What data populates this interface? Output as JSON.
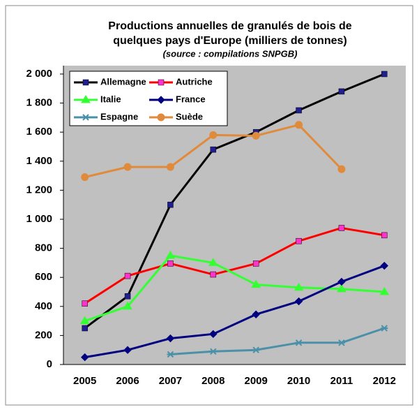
{
  "chart_data": {
    "type": "line",
    "title": [
      "Productions annuelles de granulés de bois de",
      "quelques pays d'Europe (milliers de tonnes)"
    ],
    "subtitle": "(source :  compilations SNPGB)",
    "categories": [
      "2005",
      "2006",
      "2007",
      "2008",
      "2009",
      "2010",
      "2011",
      "2012"
    ],
    "series": [
      {
        "name": "Allemagne",
        "color": "#000000",
        "marker": "square",
        "marker_color": "#1f1f8f",
        "values": [
          250,
          470,
          1100,
          1480,
          1600,
          1750,
          1880,
          2000
        ]
      },
      {
        "name": "Autriche",
        "color": "#ff0000",
        "marker": "square",
        "marker_color": "#ff33cc",
        "values": [
          420,
          610,
          695,
          620,
          695,
          850,
          940,
          890
        ]
      },
      {
        "name": "Italie",
        "color": "#33ff33",
        "marker": "triangle",
        "marker_color": "#33ff33",
        "values": [
          300,
          400,
          750,
          700,
          550,
          530,
          520,
          500
        ]
      },
      {
        "name": "France",
        "color": "#000080",
        "marker": "diamond",
        "marker_color": "#000080",
        "values": [
          50,
          100,
          180,
          210,
          345,
          435,
          570,
          680
        ]
      },
      {
        "name": "Espagne",
        "color": "#4a90a8",
        "marker": "star",
        "marker_color": "#4a90a8",
        "values": [
          null,
          null,
          70,
          90,
          100,
          150,
          150,
          250
        ]
      },
      {
        "name": "Suède",
        "color": "#e08a3c",
        "marker": "circle",
        "marker_color": "#e08a3c",
        "values": [
          1290,
          1360,
          1360,
          1580,
          1575,
          1650,
          1345,
          null
        ]
      }
    ],
    "ylim": [
      0,
      2000
    ],
    "yticks": [
      0,
      200,
      400,
      600,
      800,
      {
        "value": 1000,
        "label": "1 000"
      },
      {
        "value": 1200,
        "label": "1 200"
      },
      {
        "value": 1400,
        "label": "1 400"
      },
      {
        "value": 1600,
        "label": "1 600"
      },
      {
        "value": 1800,
        "label": "1 800"
      },
      {
        "value": 2000,
        "label": "2 000"
      }
    ],
    "grid": false,
    "background": "#c0c0c0",
    "legend": "top-left"
  }
}
